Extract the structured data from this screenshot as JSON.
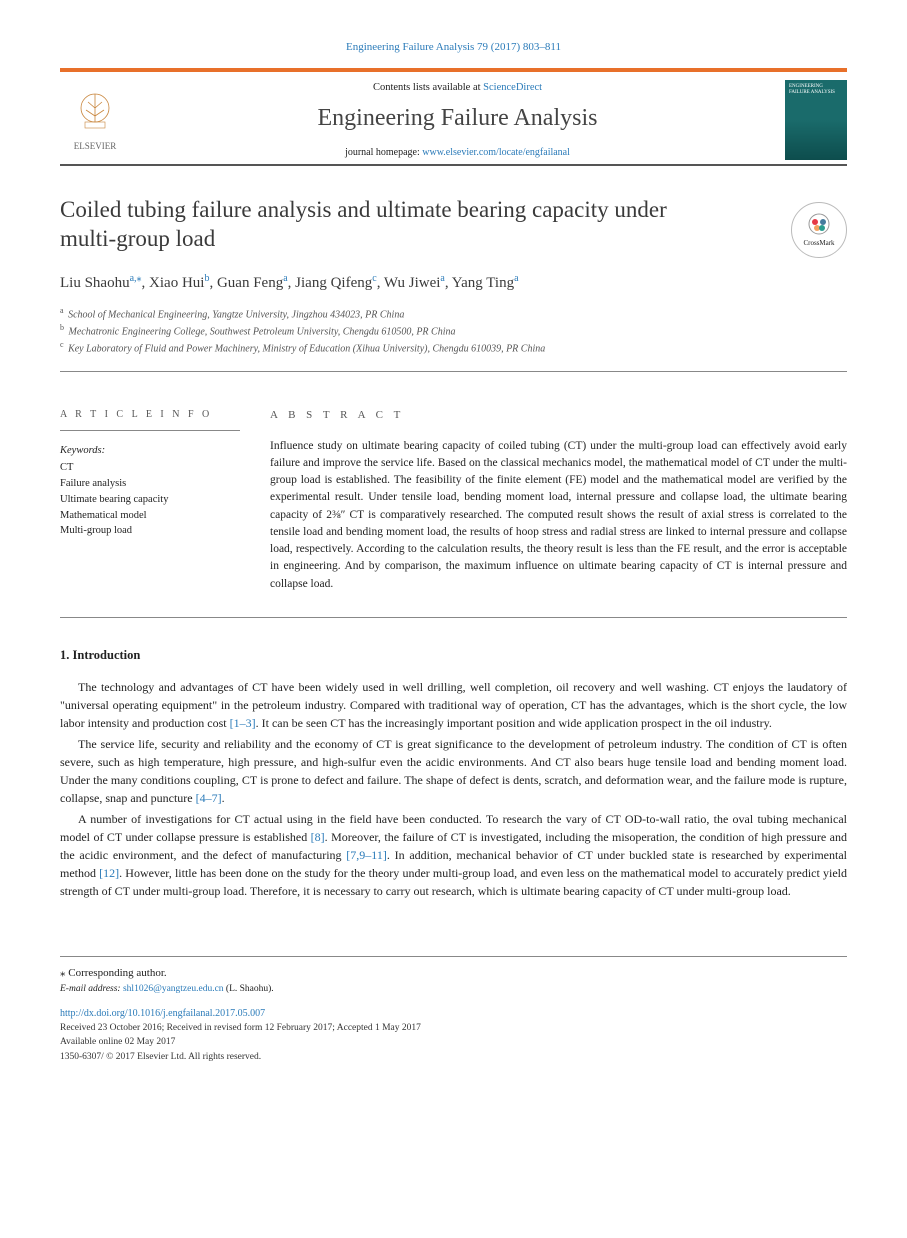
{
  "citation": "Engineering Failure Analysis 79 (2017) 803–811",
  "banner": {
    "contents_prefix": "Contents lists available at ",
    "contents_link": "ScienceDirect",
    "journal_name": "Engineering Failure Analysis",
    "homepage_prefix": "journal homepage: ",
    "homepage_url": "www.elsevier.com/locate/engfailanal",
    "publisher": "ELSEVIER",
    "cover_text": "ENGINEERING FAILURE ANALYSIS"
  },
  "crossmark": "CrossMark",
  "title": "Coiled tubing failure analysis and ultimate bearing capacity under multi-group load",
  "authors": [
    {
      "name": "Liu Shaohu",
      "sup": "a,",
      "corr": "⁎"
    },
    {
      "name": "Xiao Hui",
      "sup": "b"
    },
    {
      "name": "Guan Feng",
      "sup": "a"
    },
    {
      "name": "Jiang Qifeng",
      "sup": "c"
    },
    {
      "name": "Wu Jiwei",
      "sup": "a"
    },
    {
      "name": "Yang Ting",
      "sup": "a"
    }
  ],
  "affiliations": [
    {
      "mark": "a",
      "text": "School of Mechanical Engineering, Yangtze University, Jingzhou 434023, PR China"
    },
    {
      "mark": "b",
      "text": "Mechatronic Engineering College, Southwest Petroleum University, Chengdu 610500, PR China"
    },
    {
      "mark": "c",
      "text": "Key Laboratory of Fluid and Power Machinery, Ministry of Education (Xihua University), Chengdu 610039, PR China"
    }
  ],
  "labels": {
    "article_info": "A R T I C L E  I N F O",
    "abstract": "A B S T R A C T",
    "keywords": "Keywords:"
  },
  "keywords": [
    "CT",
    "Failure analysis",
    "Ultimate bearing capacity",
    "Mathematical model",
    "Multi-group load"
  ],
  "abstract": "Influence study on ultimate bearing capacity of coiled tubing (CT) under the multi-group load can effectively avoid early failure and improve the service life. Based on the classical mechanics model, the mathematical model of CT under the multi-group load is established. The feasibility of the finite element (FE) model and the mathematical model are verified by the experimental result. Under tensile load, bending moment load, internal pressure and collapse load, the ultimate bearing capacity of 2⅜″ CT is comparatively researched. The computed result shows the result of axial stress is correlated to the tensile load and bending moment load, the results of hoop stress and radial stress are linked to internal pressure and collapse load, respectively. According to the calculation results, the theory result is less than the FE result, and the error is acceptable in engineering. And by comparison, the maximum influence on ultimate bearing capacity of CT is internal pressure and collapse load.",
  "section1": {
    "heading": "1. Introduction",
    "p1_a": "The technology and advantages of CT have been widely used in well drilling, well completion, oil recovery and well washing. CT enjoys the laudatory of \"universal operating equipment\" in the petroleum industry. Compared with traditional way of operation, CT has the advantages, which is the short cycle, the low labor intensity and production cost ",
    "p1_ref": "[1–3]",
    "p1_b": ". It can be seen CT has the increasingly important position and wide application prospect in the oil industry.",
    "p2_a": "The service life, security and reliability and the economy of CT is great significance to the development of petroleum industry. The condition of CT is often severe, such as high temperature, high pressure, and high-sulfur even the acidic environments. And CT also bears huge tensile load and bending moment load. Under the many conditions coupling, CT is prone to defect and failure. The shape of defect is dents, scratch, and deformation wear, and the failure mode is rupture, collapse, snap and puncture ",
    "p2_ref": "[4–7]",
    "p2_b": ".",
    "p3_a": "A number of investigations for CT actual using in the field have been conducted. To research the vary of CT OD-to-wall ratio, the oval tubing mechanical model of CT under collapse pressure is established ",
    "p3_ref1": "[8]",
    "p3_b": ". Moreover, the failure of CT is investigated, including the misoperation, the condition of high pressure and the acidic environment, and the defect of manufacturing ",
    "p3_ref2": "[7,9–11]",
    "p3_c": ". In addition, mechanical behavior of CT under buckled state is researched by experimental method ",
    "p3_ref3": "[12]",
    "p3_d": ". However, little has been done on the study for the theory under multi-group load, and even less on the mathematical model to accurately predict yield strength of CT under multi-group load. Therefore, it is necessary to carry out research, which is ultimate bearing capacity of CT under multi-group load."
  },
  "footer": {
    "corr_label": "⁎ Corresponding author.",
    "email_label": "E-mail address: ",
    "email": "shl1026@yangtzeu.edu.cn",
    "email_suffix": " (L. Shaohu).",
    "doi": "http://dx.doi.org/10.1016/j.engfailanal.2017.05.007",
    "history": "Received 23 October 2016; Received in revised form 12 February 2017; Accepted 1 May 2017",
    "available": "Available online 02 May 2017",
    "copyright": "1350-6307/ © 2017 Elsevier Ltd. All rights reserved."
  }
}
